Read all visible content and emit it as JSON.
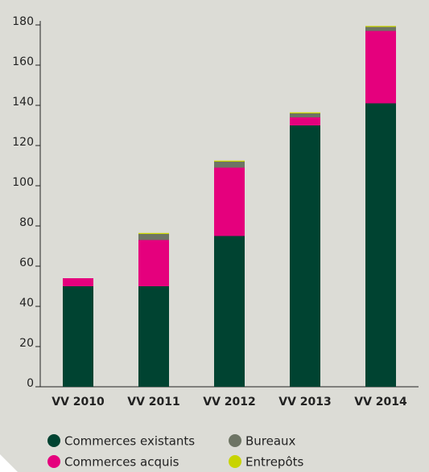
{
  "chart_data": {
    "type": "bar",
    "stacked": true,
    "categories": [
      "VV 2010",
      "VV 2011",
      "VV 2012",
      "VV 2013",
      "VV 2014"
    ],
    "series": [
      {
        "name": "Commerces existants",
        "color": "#004331",
        "values": [
          50,
          50,
          75,
          130,
          141
        ]
      },
      {
        "name": "Commerces acquis",
        "color": "#e5007d",
        "values": [
          4,
          23,
          34,
          4,
          36
        ]
      },
      {
        "name": "Bureaux",
        "color": "#6d7464",
        "values": [
          0,
          3,
          3,
          2,
          2
        ]
      },
      {
        "name": "Entrepôts",
        "color": "#c8d400",
        "values": [
          0,
          0.5,
          0.5,
          0.5,
          0.5
        ]
      }
    ],
    "ylim": [
      0,
      180
    ],
    "yticks": [
      0,
      20,
      40,
      60,
      80,
      100,
      120,
      140,
      160,
      180
    ]
  }
}
